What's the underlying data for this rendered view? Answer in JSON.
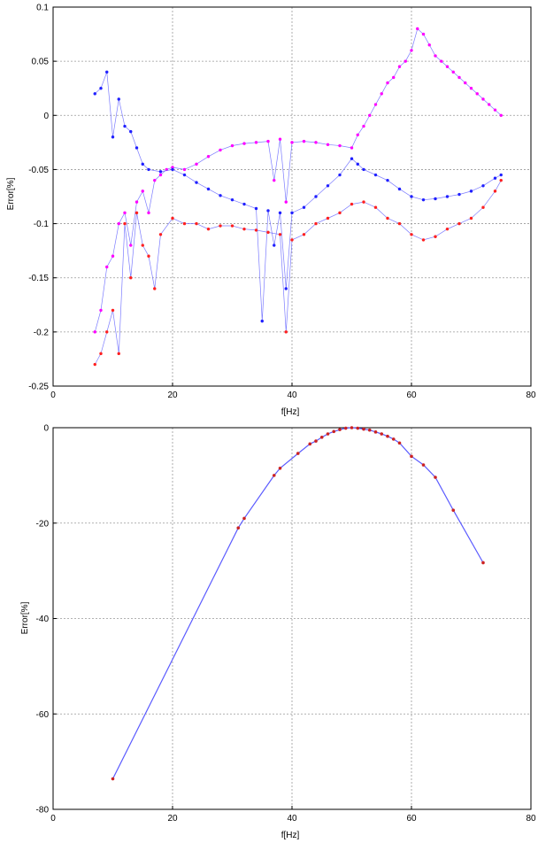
{
  "chart_data": [
    {
      "type": "line",
      "xlabel": "f[Hz]",
      "ylabel": "Error[%]",
      "xlim": [
        0,
        80
      ],
      "ylim": [
        -0.25,
        0.1
      ],
      "xticks": [
        "0",
        "20",
        "40",
        "60",
        "80"
      ],
      "yticks": [
        "0.1",
        "0.05",
        "0",
        "-0.05",
        "-0.1",
        "-0.15",
        "-0.2",
        "-0.25"
      ],
      "grid": true,
      "colors": {
        "line": "#5b5bff",
        "magenta": "#ff00ff",
        "blue": "#2020ff",
        "red": "#ff2020"
      },
      "series": [
        {
          "color": "magenta",
          "x": [
            7,
            8,
            9,
            10,
            11,
            12,
            13,
            14,
            15,
            16,
            17,
            18,
            19,
            20,
            22,
            24,
            26,
            28,
            30,
            32,
            34,
            36,
            37,
            38,
            39,
            40,
            42,
            44,
            46,
            48,
            50,
            51,
            52,
            53,
            54,
            55,
            56,
            57,
            58,
            59,
            60,
            61,
            62,
            63,
            64,
            65,
            66,
            67,
            68,
            69,
            70,
            71,
            72,
            73,
            74,
            75
          ],
          "y": [
            -0.2,
            -0.18,
            -0.14,
            -0.13,
            -0.1,
            -0.09,
            -0.12,
            -0.08,
            -0.07,
            -0.09,
            -0.06,
            -0.055,
            -0.05,
            -0.048,
            -0.05,
            -0.045,
            -0.038,
            -0.032,
            -0.028,
            -0.026,
            -0.025,
            -0.024,
            -0.06,
            -0.022,
            -0.08,
            -0.025,
            -0.024,
            -0.025,
            -0.027,
            -0.028,
            -0.03,
            -0.018,
            -0.01,
            0.0,
            0.01,
            0.02,
            0.03,
            0.035,
            0.045,
            0.05,
            0.06,
            0.08,
            0.075,
            0.065,
            0.055,
            0.05,
            0.045,
            0.04,
            0.035,
            0.03,
            0.025,
            0.02,
            0.015,
            0.01,
            0.005,
            0.0
          ]
        },
        {
          "color": "blue",
          "x": [
            7,
            8,
            9,
            10,
            11,
            12,
            13,
            14,
            15,
            16,
            18,
            20,
            22,
            24,
            26,
            28,
            30,
            32,
            34,
            35,
            36,
            37,
            38,
            39,
            40,
            42,
            44,
            46,
            48,
            50,
            51,
            52,
            54,
            56,
            58,
            60,
            62,
            64,
            66,
            68,
            70,
            72,
            74,
            75
          ],
          "y": [
            0.02,
            0.025,
            0.04,
            -0.02,
            0.015,
            -0.01,
            -0.015,
            -0.03,
            -0.045,
            -0.05,
            -0.052,
            -0.05,
            -0.055,
            -0.062,
            -0.068,
            -0.074,
            -0.078,
            -0.082,
            -0.086,
            -0.19,
            -0.088,
            -0.12,
            -0.09,
            -0.16,
            -0.09,
            -0.085,
            -0.075,
            -0.065,
            -0.055,
            -0.04,
            -0.045,
            -0.05,
            -0.055,
            -0.06,
            -0.068,
            -0.075,
            -0.078,
            -0.077,
            -0.075,
            -0.073,
            -0.07,
            -0.065,
            -0.058,
            -0.055
          ]
        },
        {
          "color": "red",
          "x": [
            7,
            8,
            9,
            10,
            11,
            12,
            13,
            14,
            15,
            16,
            17,
            18,
            20,
            22,
            24,
            26,
            28,
            30,
            32,
            34,
            36,
            38,
            39,
            40,
            42,
            44,
            46,
            48,
            50,
            52,
            54,
            56,
            58,
            60,
            62,
            64,
            66,
            68,
            70,
            72,
            74,
            75
          ],
          "y": [
            -0.23,
            -0.22,
            -0.2,
            -0.18,
            -0.22,
            -0.1,
            -0.15,
            -0.09,
            -0.12,
            -0.13,
            -0.16,
            -0.11,
            -0.095,
            -0.1,
            -0.1,
            -0.105,
            -0.102,
            -0.102,
            -0.105,
            -0.106,
            -0.108,
            -0.11,
            -0.2,
            -0.115,
            -0.11,
            -0.1,
            -0.095,
            -0.09,
            -0.082,
            -0.08,
            -0.085,
            -0.095,
            -0.1,
            -0.11,
            -0.115,
            -0.112,
            -0.105,
            -0.1,
            -0.095,
            -0.085,
            -0.07,
            -0.06
          ]
        }
      ]
    },
    {
      "type": "line",
      "xlabel": "f[Hz]",
      "ylabel": "Error[%]",
      "xlim": [
        0,
        80
      ],
      "ylim": [
        -80,
        0
      ],
      "xticks": [
        "0",
        "20",
        "40",
        "60",
        "80"
      ],
      "yticks": [
        "0",
        "-20",
        "-40",
        "-60",
        "-80"
      ],
      "grid": true,
      "colors": {
        "line": "#5b5bff",
        "markers": "#cc2222"
      },
      "series": [
        {
          "color": "line",
          "x": [
            10,
            31,
            32,
            37,
            38,
            41,
            43,
            44,
            45,
            46,
            47,
            48,
            49,
            50,
            51,
            52,
            53,
            54,
            55,
            56,
            57,
            58,
            60,
            62,
            64,
            67,
            72
          ],
          "y": [
            -73.6,
            -21.0,
            -19.0,
            -10.0,
            -8.5,
            -5.4,
            -3.4,
            -2.8,
            -2.0,
            -1.3,
            -0.8,
            -0.4,
            -0.1,
            0.0,
            -0.1,
            -0.3,
            -0.5,
            -0.9,
            -1.3,
            -1.8,
            -2.4,
            -3.2,
            -6.0,
            -7.8,
            -10.4,
            -17.3,
            -28.3
          ]
        }
      ]
    }
  ]
}
